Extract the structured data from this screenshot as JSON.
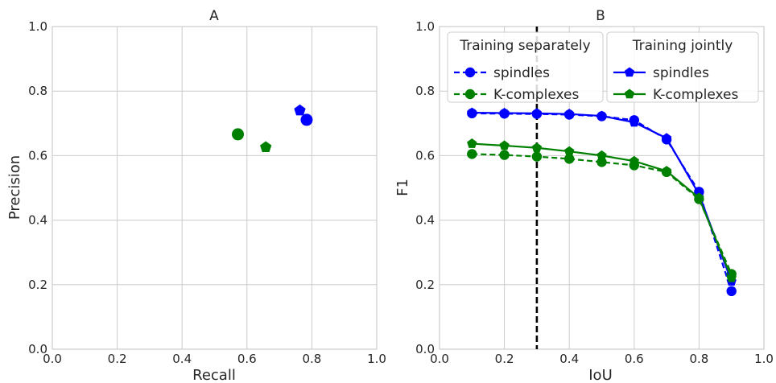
{
  "chart_data": [
    {
      "type": "scatter",
      "title": "A",
      "xlabel": "Recall",
      "ylabel": "Precision",
      "xlim": [
        0.0,
        1.0
      ],
      "ylim": [
        0.0,
        1.0
      ],
      "xticks": [
        "0.0",
        "0.2",
        "0.4",
        "0.6",
        "0.8",
        "1.0"
      ],
      "yticks": [
        "0.0",
        "0.2",
        "0.4",
        "0.6",
        "0.8",
        "1.0"
      ],
      "grid": true,
      "series": [
        {
          "color": "#0000ff",
          "marker": "circle",
          "points": [
            [
              0.784,
              0.711
            ]
          ]
        },
        {
          "color": "#008000",
          "marker": "circle",
          "points": [
            [
              0.572,
              0.666
            ]
          ]
        },
        {
          "color": "#0000ff",
          "marker": "pentagon",
          "points": [
            [
              0.763,
              0.74
            ]
          ]
        },
        {
          "color": "#008000",
          "marker": "pentagon",
          "points": [
            [
              0.658,
              0.626
            ]
          ]
        }
      ]
    },
    {
      "type": "line",
      "title": "B",
      "xlabel": "IoU",
      "ylabel": "F1",
      "xlim": [
        0.0,
        1.0
      ],
      "ylim": [
        0.0,
        1.0
      ],
      "xticks": [
        "0.0",
        "0.2",
        "0.4",
        "0.6",
        "0.8",
        "1.0"
      ],
      "yticks": [
        "0.0",
        "0.2",
        "0.4",
        "0.6",
        "0.8",
        "1.0"
      ],
      "grid": true,
      "x": [
        0.1,
        0.2,
        0.3,
        0.4,
        0.5,
        0.6,
        0.7,
        0.8,
        0.9
      ],
      "vline": {
        "x": 0.3,
        "color": "#000000",
        "style": "dashed"
      },
      "series": [
        {
          "name": "spindles",
          "group": "Training separately",
          "color": "#0000ff",
          "marker": "circle",
          "linestyle": "dashed",
          "values": [
            0.731,
            0.73,
            0.729,
            0.727,
            0.722,
            0.71,
            0.65,
            0.488,
            0.18
          ]
        },
        {
          "name": "K-complexes",
          "group": "Training separately",
          "color": "#008000",
          "marker": "circle",
          "linestyle": "dashed",
          "values": [
            0.605,
            0.602,
            0.597,
            0.59,
            0.58,
            0.57,
            0.549,
            0.465,
            0.233
          ]
        },
        {
          "name": "spindles",
          "group": "Training jointly",
          "color": "#0000ff",
          "marker": "pentagon",
          "linestyle": "solid",
          "values": [
            0.733,
            0.732,
            0.731,
            0.729,
            0.723,
            0.703,
            0.654,
            0.48,
            0.21
          ]
        },
        {
          "name": "K-complexes",
          "group": "Training jointly",
          "color": "#008000",
          "marker": "pentagon",
          "linestyle": "solid",
          "values": [
            0.637,
            0.631,
            0.624,
            0.613,
            0.6,
            0.583,
            0.552,
            0.469,
            0.221
          ]
        }
      ],
      "legends": [
        {
          "title": "Training separately",
          "placement": "upper-left",
          "entries": [
            0,
            1
          ]
        },
        {
          "title": "Training jointly",
          "placement": "upper-right",
          "entries": [
            2,
            3
          ]
        }
      ]
    }
  ]
}
